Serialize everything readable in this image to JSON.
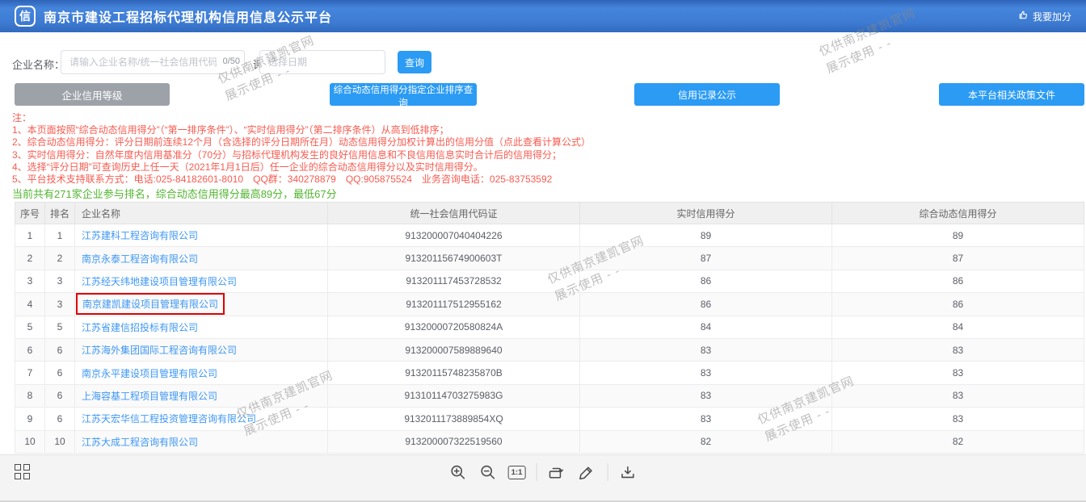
{
  "header": {
    "logo_text": "信",
    "title": "南京市建设工程招标代理机构信用信息公示平台",
    "add_score_label": "我要加分"
  },
  "search": {
    "company_label": "企业名称：",
    "company_placeholder": "请输入企业名称/统一社会信用代码",
    "company_counter": "0/50",
    "date_label": "评分日期：",
    "date_placeholder": "选择日期",
    "query_button": "查询"
  },
  "actions": {
    "credit_level": "企业信用等级",
    "rank_query": "综合动态信用得分指定企业排序查询",
    "credit_record": "信用记录公示",
    "policy_files": "本平台相关政策文件"
  },
  "notes": {
    "title": "注：",
    "items": [
      "1、本页面按照“综合动态信用得分”（“第一排序条件”）、“实时信用得分”（第二排序条件）从高到低排序；",
      "2、综合动态信用得分：评分日期前连续12个月（含选择的评分日期所在月）动态信用得分加权计算出的信用分值（点此查看计算公式）",
      "3、实时信用得分：自然年度内信用基准分（70分）与招标代理机构发生的良好信用信息和不良信用信息实时合计后的信用得分；",
      "4、选择“评分日期”可查询历史上任一天（2021年1月1日后）任一企业的综合动态信用得分以及实时信用得分。",
      "5、平台技术支持联系方式：电话:025-84182601-8010　QQ群：340278879　QQ:905875524　业务咨询电话：025-83753592"
    ],
    "summary": "当前共有271家企业参与排名，综合动态信用得分最高89分，最低67分"
  },
  "table": {
    "headers": [
      "序号",
      "排名",
      "企业名称",
      "统一社会信用代码证",
      "实时信用得分",
      "综合动态信用得分"
    ],
    "rows": [
      {
        "index": "1",
        "rank": "1",
        "name": "江苏建科工程咨询有限公司",
        "code": "913200007040404226",
        "realtime": "89",
        "dynamic": "89",
        "highlighted": false
      },
      {
        "index": "2",
        "rank": "2",
        "name": "南京永泰工程咨询有限公司",
        "code": "91320115674900603T",
        "realtime": "87",
        "dynamic": "87",
        "highlighted": false
      },
      {
        "index": "3",
        "rank": "3",
        "name": "江苏经天纬地建设项目管理有限公司",
        "code": "913201117453728532",
        "realtime": "86",
        "dynamic": "86",
        "highlighted": false
      },
      {
        "index": "4",
        "rank": "3",
        "name": "南京建凯建设项目管理有限公司",
        "code": "913201117512955162",
        "realtime": "86",
        "dynamic": "86",
        "highlighted": true
      },
      {
        "index": "5",
        "rank": "5",
        "name": "江苏省建信招投标有限公司",
        "code": "91320000720580824A",
        "realtime": "84",
        "dynamic": "84",
        "highlighted": false
      },
      {
        "index": "6",
        "rank": "6",
        "name": "江苏海外集团国际工程咨询有限公司",
        "code": "913200007589889640",
        "realtime": "83",
        "dynamic": "83",
        "highlighted": false
      },
      {
        "index": "7",
        "rank": "6",
        "name": "南京永平建设项目管理有限公司",
        "code": "91320115748235870B",
        "realtime": "83",
        "dynamic": "83",
        "highlighted": false
      },
      {
        "index": "8",
        "rank": "6",
        "name": "上海容基工程项目管理有限公司",
        "code": "91310114703275983G",
        "realtime": "83",
        "dynamic": "83",
        "highlighted": false
      },
      {
        "index": "9",
        "rank": "6",
        "name": "江苏天宏华信工程投资管理咨询有限公司",
        "code": "9132011173889854XQ",
        "realtime": "83",
        "dynamic": "83",
        "highlighted": false
      },
      {
        "index": "10",
        "rank": "10",
        "name": "江苏大成工程咨询有限公司",
        "code": "913200007322519560",
        "realtime": "82",
        "dynamic": "82",
        "highlighted": false
      }
    ]
  },
  "watermark": {
    "line1": "仅供南京建凯官网",
    "line2": "展示使用 - -"
  },
  "toolbar": {
    "scale_label": "1:1"
  },
  "colors": {
    "button_blue": "#2b9bf4",
    "button_gray": "#9da2a9",
    "note_red": "#f85b50",
    "summary_green": "#53b531",
    "link_blue": "#3e97f6",
    "highlight_red": "#e00000",
    "watermark_gray": "#8a8a8a"
  }
}
